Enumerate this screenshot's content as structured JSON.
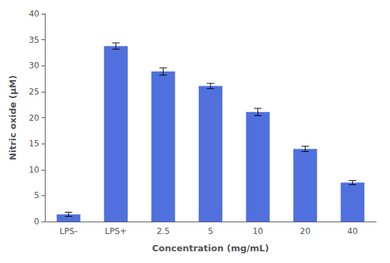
{
  "chart_data": {
    "type": "bar",
    "categories": [
      "LPS-",
      "LPS+",
      "2.5",
      "5",
      "10",
      "20",
      "40"
    ],
    "values": [
      1.4,
      33.8,
      28.9,
      26.1,
      21.1,
      14.0,
      7.5
    ],
    "errors": [
      0.4,
      0.6,
      0.7,
      0.5,
      0.7,
      0.5,
      0.4
    ],
    "xlabel": "Concentration (mg/mL)",
    "ylabel": "Nitric oxide (μM)",
    "ylim": [
      0,
      40
    ],
    "yticks": [
      0,
      5,
      10,
      15,
      20,
      25,
      30,
      35,
      40
    ],
    "grid": false
  }
}
